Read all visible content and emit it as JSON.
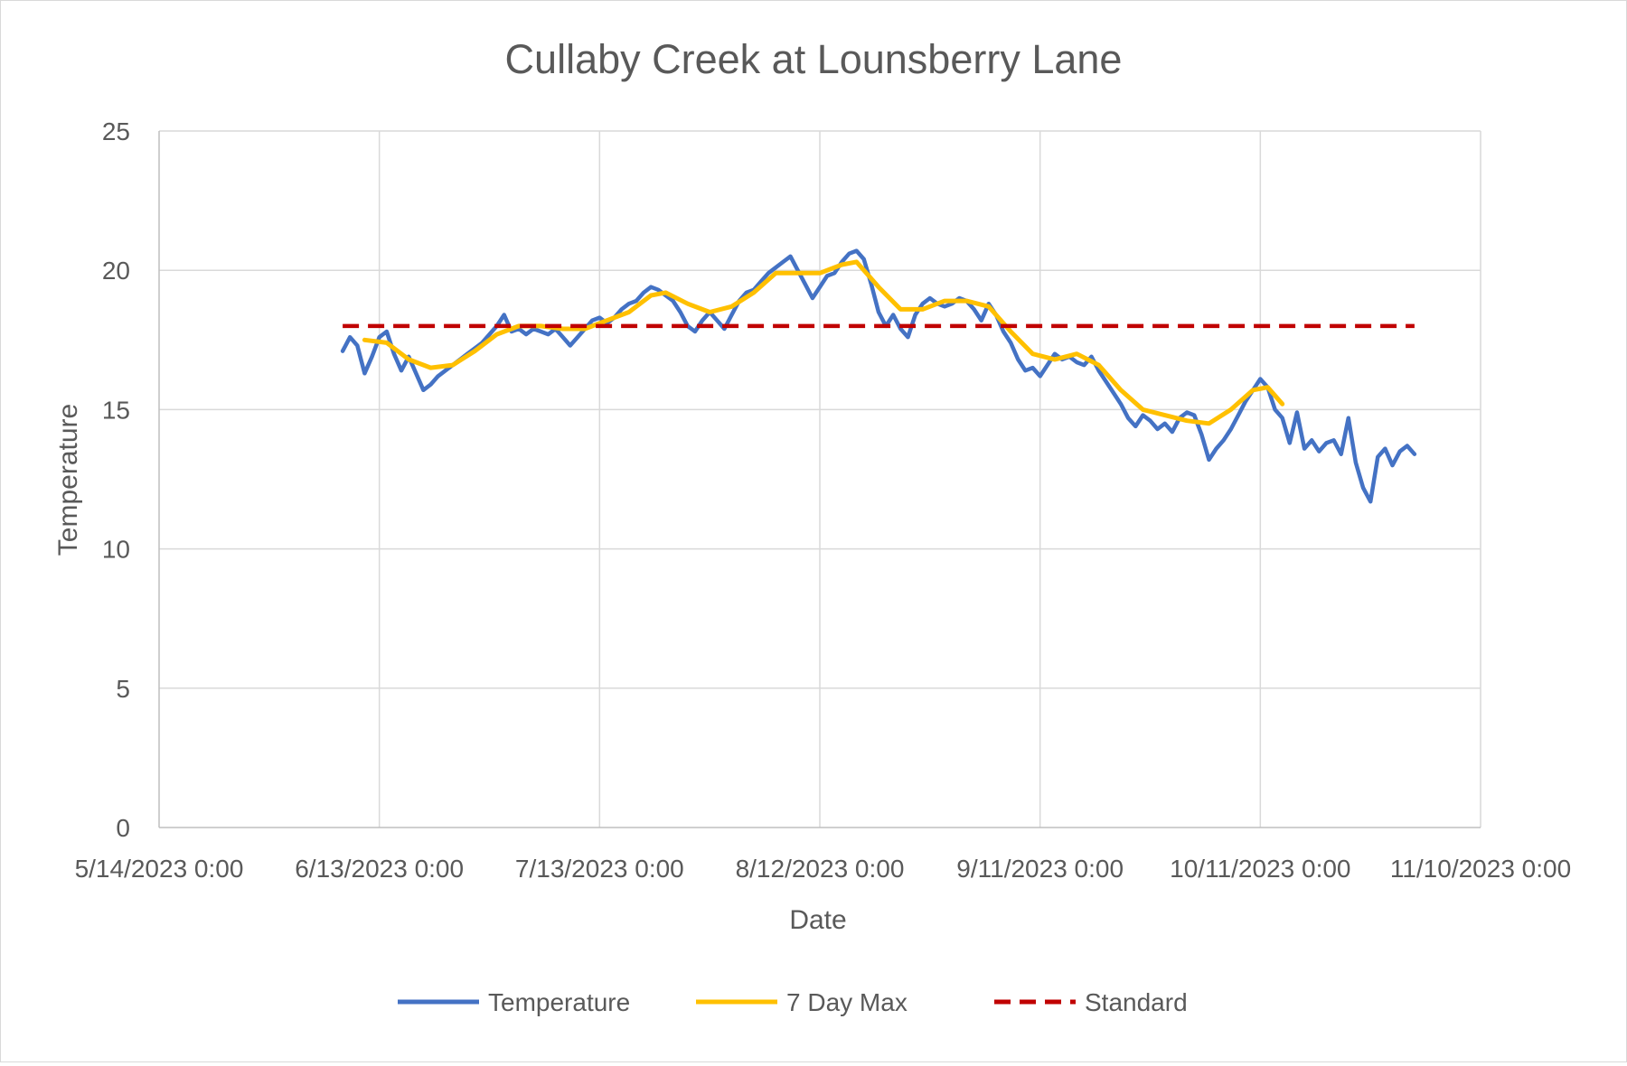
{
  "chart_data": {
    "type": "line",
    "title": "Cullaby Creek at Lounsberry Lane",
    "xlabel": "Date",
    "ylabel": "Temperature",
    "xlim": [
      "2023-05-14",
      "2023-11-10"
    ],
    "ylim": [
      0,
      25
    ],
    "x_ticks": [
      "5/14/2023 0:00",
      "6/13/2023 0:00",
      "7/13/2023 0:00",
      "8/12/2023 0:00",
      "9/11/2023 0:00",
      "10/11/2023 0:00",
      "11/10/2023 0:00"
    ],
    "y_ticks": [
      "0",
      "5",
      "10",
      "15",
      "20",
      "25"
    ],
    "grid": true,
    "legend_position": "bottom",
    "series": [
      {
        "name": "Temperature",
        "color": "#4472c4",
        "style": "solid",
        "points": [
          [
            "2023-06-08",
            17.1
          ],
          [
            "2023-06-09",
            17.6
          ],
          [
            "2023-06-10",
            17.3
          ],
          [
            "2023-06-11",
            16.3
          ],
          [
            "2023-06-12",
            16.9
          ],
          [
            "2023-06-13",
            17.6
          ],
          [
            "2023-06-14",
            17.8
          ],
          [
            "2023-06-15",
            17.0
          ],
          [
            "2023-06-16",
            16.4
          ],
          [
            "2023-06-17",
            16.9
          ],
          [
            "2023-06-18",
            16.3
          ],
          [
            "2023-06-19",
            15.7
          ],
          [
            "2023-06-20",
            15.9
          ],
          [
            "2023-06-21",
            16.2
          ],
          [
            "2023-06-22",
            16.4
          ],
          [
            "2023-06-23",
            16.6
          ],
          [
            "2023-06-24",
            16.8
          ],
          [
            "2023-06-25",
            17.0
          ],
          [
            "2023-06-26",
            17.2
          ],
          [
            "2023-06-27",
            17.4
          ],
          [
            "2023-06-28",
            17.7
          ],
          [
            "2023-06-29",
            18.0
          ],
          [
            "2023-06-30",
            18.4
          ],
          [
            "2023-07-01",
            17.8
          ],
          [
            "2023-07-02",
            17.9
          ],
          [
            "2023-07-03",
            17.7
          ],
          [
            "2023-07-04",
            17.9
          ],
          [
            "2023-07-05",
            17.8
          ],
          [
            "2023-07-06",
            17.7
          ],
          [
            "2023-07-07",
            17.9
          ],
          [
            "2023-07-08",
            17.6
          ],
          [
            "2023-07-09",
            17.3
          ],
          [
            "2023-07-10",
            17.6
          ],
          [
            "2023-07-11",
            17.9
          ],
          [
            "2023-07-12",
            18.2
          ],
          [
            "2023-07-13",
            18.3
          ],
          [
            "2023-07-14",
            18.1
          ],
          [
            "2023-07-15",
            18.3
          ],
          [
            "2023-07-16",
            18.6
          ],
          [
            "2023-07-17",
            18.8
          ],
          [
            "2023-07-18",
            18.9
          ],
          [
            "2023-07-19",
            19.2
          ],
          [
            "2023-07-20",
            19.4
          ],
          [
            "2023-07-21",
            19.3
          ],
          [
            "2023-07-22",
            19.1
          ],
          [
            "2023-07-23",
            18.9
          ],
          [
            "2023-07-24",
            18.5
          ],
          [
            "2023-07-25",
            18.0
          ],
          [
            "2023-07-26",
            17.8
          ],
          [
            "2023-07-27",
            18.2
          ],
          [
            "2023-07-28",
            18.5
          ],
          [
            "2023-07-29",
            18.2
          ],
          [
            "2023-07-30",
            17.9
          ],
          [
            "2023-07-31",
            18.4
          ],
          [
            "2023-08-01",
            18.9
          ],
          [
            "2023-08-02",
            19.2
          ],
          [
            "2023-08-03",
            19.3
          ],
          [
            "2023-08-04",
            19.6
          ],
          [
            "2023-08-05",
            19.9
          ],
          [
            "2023-08-06",
            20.1
          ],
          [
            "2023-08-07",
            20.3
          ],
          [
            "2023-08-08",
            20.5
          ],
          [
            "2023-08-09",
            20.0
          ],
          [
            "2023-08-10",
            19.5
          ],
          [
            "2023-08-11",
            19.0
          ],
          [
            "2023-08-12",
            19.4
          ],
          [
            "2023-08-13",
            19.8
          ],
          [
            "2023-08-14",
            19.9
          ],
          [
            "2023-08-15",
            20.3
          ],
          [
            "2023-08-16",
            20.6
          ],
          [
            "2023-08-17",
            20.7
          ],
          [
            "2023-08-18",
            20.4
          ],
          [
            "2023-08-19",
            19.5
          ],
          [
            "2023-08-20",
            18.5
          ],
          [
            "2023-08-21",
            18.0
          ],
          [
            "2023-08-22",
            18.4
          ],
          [
            "2023-08-23",
            17.9
          ],
          [
            "2023-08-24",
            17.6
          ],
          [
            "2023-08-25",
            18.4
          ],
          [
            "2023-08-26",
            18.8
          ],
          [
            "2023-08-27",
            19.0
          ],
          [
            "2023-08-28",
            18.8
          ],
          [
            "2023-08-29",
            18.7
          ],
          [
            "2023-08-30",
            18.8
          ],
          [
            "2023-08-31",
            19.0
          ],
          [
            "2023-09-01",
            18.9
          ],
          [
            "2023-09-02",
            18.6
          ],
          [
            "2023-09-03",
            18.2
          ],
          [
            "2023-09-04",
            18.8
          ],
          [
            "2023-09-05",
            18.4
          ],
          [
            "2023-09-06",
            17.8
          ],
          [
            "2023-09-07",
            17.4
          ],
          [
            "2023-09-08",
            16.8
          ],
          [
            "2023-09-09",
            16.4
          ],
          [
            "2023-09-10",
            16.5
          ],
          [
            "2023-09-11",
            16.2
          ],
          [
            "2023-09-12",
            16.6
          ],
          [
            "2023-09-13",
            17.0
          ],
          [
            "2023-09-14",
            16.8
          ],
          [
            "2023-09-15",
            16.9
          ],
          [
            "2023-09-16",
            16.7
          ],
          [
            "2023-09-17",
            16.6
          ],
          [
            "2023-09-18",
            16.9
          ],
          [
            "2023-09-19",
            16.4
          ],
          [
            "2023-09-20",
            16.0
          ],
          [
            "2023-09-21",
            15.6
          ],
          [
            "2023-09-22",
            15.2
          ],
          [
            "2023-09-23",
            14.7
          ],
          [
            "2023-09-24",
            14.4
          ],
          [
            "2023-09-25",
            14.8
          ],
          [
            "2023-09-26",
            14.6
          ],
          [
            "2023-09-27",
            14.3
          ],
          [
            "2023-09-28",
            14.5
          ],
          [
            "2023-09-29",
            14.2
          ],
          [
            "2023-09-30",
            14.7
          ],
          [
            "2023-10-01",
            14.9
          ],
          [
            "2023-10-02",
            14.8
          ],
          [
            "2023-10-03",
            14.1
          ],
          [
            "2023-10-04",
            13.2
          ],
          [
            "2023-10-05",
            13.6
          ],
          [
            "2023-10-06",
            13.9
          ],
          [
            "2023-10-07",
            14.3
          ],
          [
            "2023-10-08",
            14.8
          ],
          [
            "2023-10-09",
            15.3
          ],
          [
            "2023-10-10",
            15.7
          ],
          [
            "2023-10-11",
            16.1
          ],
          [
            "2023-10-12",
            15.8
          ],
          [
            "2023-10-13",
            15.0
          ],
          [
            "2023-10-14",
            14.7
          ],
          [
            "2023-10-15",
            13.8
          ],
          [
            "2023-10-16",
            14.9
          ],
          [
            "2023-10-17",
            13.6
          ],
          [
            "2023-10-18",
            13.9
          ],
          [
            "2023-10-19",
            13.5
          ],
          [
            "2023-10-20",
            13.8
          ],
          [
            "2023-10-21",
            13.9
          ],
          [
            "2023-10-22",
            13.4
          ],
          [
            "2023-10-23",
            14.7
          ],
          [
            "2023-10-24",
            13.1
          ],
          [
            "2023-10-25",
            12.2
          ],
          [
            "2023-10-26",
            11.7
          ],
          [
            "2023-10-27",
            13.3
          ],
          [
            "2023-10-28",
            13.6
          ],
          [
            "2023-10-29",
            13.0
          ],
          [
            "2023-10-30",
            13.5
          ],
          [
            "2023-10-31",
            13.7
          ],
          [
            "2023-11-01",
            13.4
          ]
        ]
      },
      {
        "name": "7 Day Max",
        "color": "#ffc000",
        "style": "solid",
        "points": [
          [
            "2023-06-11",
            17.5
          ],
          [
            "2023-06-14",
            17.4
          ],
          [
            "2023-06-17",
            16.8
          ],
          [
            "2023-06-20",
            16.5
          ],
          [
            "2023-06-23",
            16.6
          ],
          [
            "2023-06-26",
            17.1
          ],
          [
            "2023-06-29",
            17.7
          ],
          [
            "2023-07-02",
            18.0
          ],
          [
            "2023-07-05",
            18.0
          ],
          [
            "2023-07-08",
            17.9
          ],
          [
            "2023-07-11",
            17.9
          ],
          [
            "2023-07-14",
            18.2
          ],
          [
            "2023-07-17",
            18.5
          ],
          [
            "2023-07-20",
            19.1
          ],
          [
            "2023-07-22",
            19.2
          ],
          [
            "2023-07-25",
            18.8
          ],
          [
            "2023-07-28",
            18.5
          ],
          [
            "2023-07-31",
            18.7
          ],
          [
            "2023-08-03",
            19.2
          ],
          [
            "2023-08-06",
            19.9
          ],
          [
            "2023-08-09",
            19.9
          ],
          [
            "2023-08-12",
            19.9
          ],
          [
            "2023-08-15",
            20.2
          ],
          [
            "2023-08-17",
            20.3
          ],
          [
            "2023-08-20",
            19.4
          ],
          [
            "2023-08-23",
            18.6
          ],
          [
            "2023-08-26",
            18.6
          ],
          [
            "2023-08-29",
            18.9
          ],
          [
            "2023-09-01",
            18.9
          ],
          [
            "2023-09-04",
            18.7
          ],
          [
            "2023-09-07",
            17.8
          ],
          [
            "2023-09-10",
            17.0
          ],
          [
            "2023-09-13",
            16.8
          ],
          [
            "2023-09-16",
            17.0
          ],
          [
            "2023-09-19",
            16.6
          ],
          [
            "2023-09-22",
            15.7
          ],
          [
            "2023-09-25",
            15.0
          ],
          [
            "2023-09-28",
            14.8
          ],
          [
            "2023-10-01",
            14.6
          ],
          [
            "2023-10-04",
            14.5
          ],
          [
            "2023-10-07",
            15.0
          ],
          [
            "2023-10-10",
            15.7
          ],
          [
            "2023-10-12",
            15.8
          ],
          [
            "2023-10-14",
            15.2
          ]
        ]
      },
      {
        "name": "Standard",
        "color": "#c00000",
        "style": "dashed",
        "points": [
          [
            "2023-06-08",
            18
          ],
          [
            "2023-11-01",
            18
          ]
        ]
      }
    ]
  }
}
